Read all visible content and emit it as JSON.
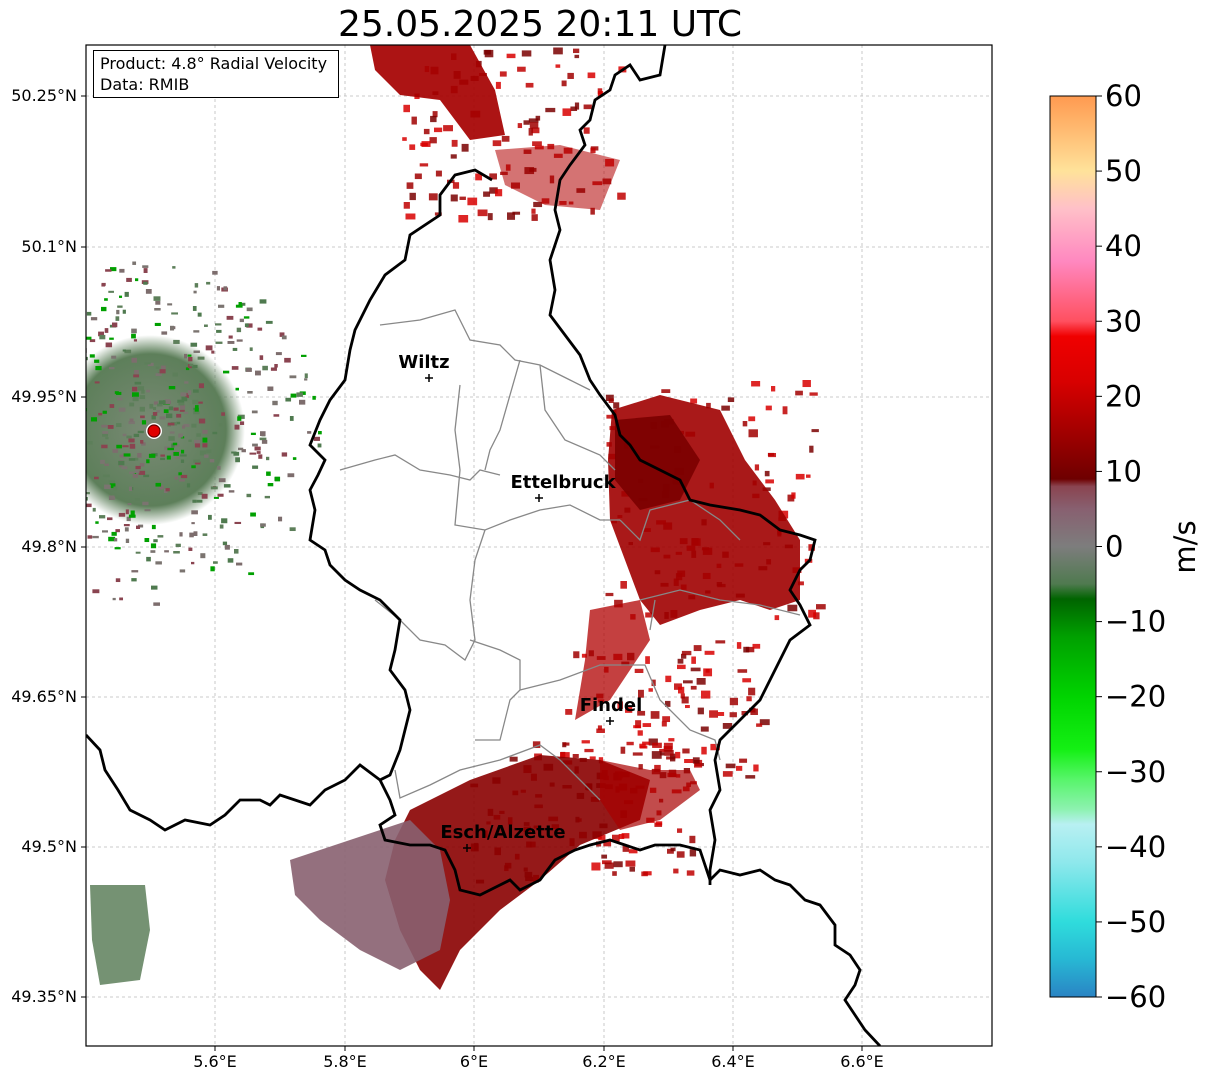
{
  "title": "25.05.2025 20:11 UTC",
  "info": {
    "product": "Product: 4.8° Radial Velocity",
    "data": "Data: RMIB"
  },
  "map": {
    "lon_ticks": [
      "5.6°E",
      "5.8°E",
      "6°E",
      "6.2°E",
      "6.4°E",
      "6.6°E"
    ],
    "lat_ticks": [
      "50.25°N",
      "50.1°N",
      "49.95°N",
      "49.8°N",
      "49.65°N",
      "49.5°N",
      "49.35°N"
    ],
    "cities": [
      {
        "name": "Wiltz",
        "lon": 5.93,
        "lat": 49.97
      },
      {
        "name": "Ettelbruck",
        "lon": 6.1,
        "lat": 49.85
      },
      {
        "name": "Findel",
        "lon": 6.21,
        "lat": 49.63
      },
      {
        "name": "Esch/Alzette",
        "lon": 5.99,
        "lat": 49.5
      }
    ],
    "radar_site_icon": "red-dot-icon"
  },
  "colorbar": {
    "label": "m/s",
    "ticks": [
      "60",
      "50",
      "40",
      "30",
      "20",
      "10",
      "0",
      "−10",
      "−20",
      "−30",
      "−40",
      "−50",
      "−60"
    ],
    "range": [
      -60,
      60
    ],
    "stops": [
      {
        "v": -60,
        "color": "#2a84c4"
      },
      {
        "v": -55,
        "color": "#27b8d4"
      },
      {
        "v": -50,
        "color": "#2fdcdc"
      },
      {
        "v": -42,
        "color": "#8fe8ec"
      },
      {
        "v": -37,
        "color": "#b8f0f2"
      },
      {
        "v": -35,
        "color": "#8df2b0"
      },
      {
        "v": -31,
        "color": "#57f56a"
      },
      {
        "v": -27,
        "color": "#14f014"
      },
      {
        "v": -20,
        "color": "#00d400"
      },
      {
        "v": -12,
        "color": "#00a000"
      },
      {
        "v": -7,
        "color": "#006400"
      },
      {
        "v": -5,
        "color": "#4f7a4f"
      },
      {
        "v": 0,
        "color": "#7d7d7d"
      },
      {
        "v": 5,
        "color": "#886070"
      },
      {
        "v": 8,
        "color": "#8a4450"
      },
      {
        "v": 9,
        "color": "#6e0000"
      },
      {
        "v": 15,
        "color": "#a00000"
      },
      {
        "v": 22,
        "color": "#d80000"
      },
      {
        "v": 28,
        "color": "#f00000"
      },
      {
        "v": 30,
        "color": "#ff5060"
      },
      {
        "v": 38,
        "color": "#ff88c0"
      },
      {
        "v": 45,
        "color": "#ffc0c8"
      },
      {
        "v": 50,
        "color": "#ffe29a"
      },
      {
        "v": 60,
        "color": "#ff9a50"
      }
    ]
  }
}
